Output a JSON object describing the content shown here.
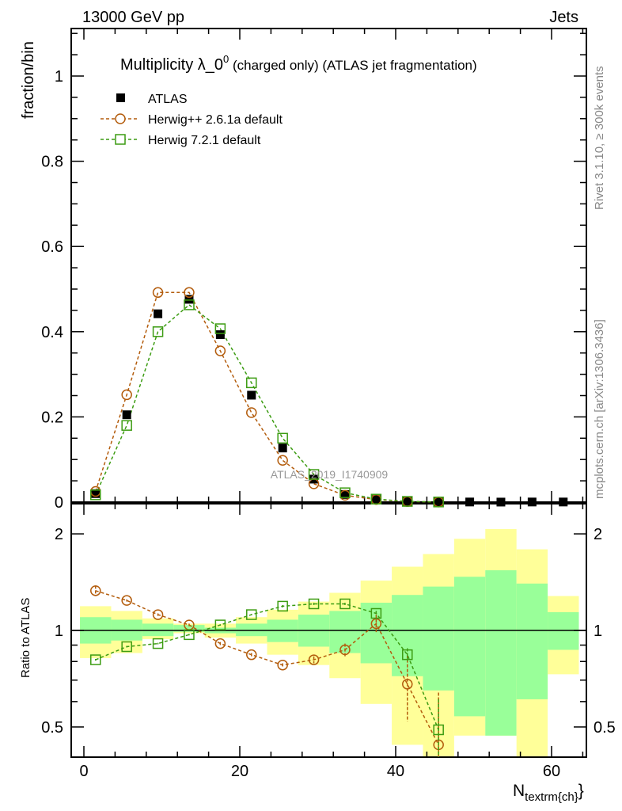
{
  "header": {
    "left": "13000 GeV pp",
    "right": "Jets"
  },
  "side": {
    "rivet": "Rivet 3.1.10, ≥ 300k events",
    "mcplots": "mcplots.cern.ch [arXiv:1306.3436]"
  },
  "watermark": "ATLAS_2019_I1740909",
  "colors": {
    "atlas": "#000000",
    "herwigpp": "#b35c0c",
    "herwig7": "#3c9c12",
    "band_outer": "#ffff99",
    "band_inner": "#99ff99"
  },
  "chart_data": [
    {
      "type": "scatter",
      "title_main": "Multiplicity λ_0",
      "title_sup": "0",
      "title_rest": " (charged only) (ATLAS jet fragmentation)",
      "xlabel": "N",
      "xlabel_sub": "textrm{ch}",
      "xlabel_close": "}",
      "ylabel": "fraction/bin",
      "xlim": [
        -1.7,
        64.5
      ],
      "ylim": [
        0,
        1.115
      ],
      "xticks": [
        "0",
        "20",
        "40",
        "60"
      ],
      "yticks": [
        "0",
        "0.2",
        "0.4",
        "0.6",
        "0.8",
        "1"
      ],
      "x": [
        1.5,
        5.5,
        9.5,
        13.5,
        17.5,
        21.5,
        25.5,
        29.5,
        33.5,
        37.5,
        41.5,
        45.5,
        49.5,
        53.5,
        57.5,
        61.5
      ],
      "legend": [
        "ATLAS",
        "Herwig++ 2.6.1a default",
        "Herwig 7.2.1 default"
      ],
      "series": [
        {
          "name": "ATLAS",
          "values": [
            0.02,
            0.205,
            0.442,
            0.476,
            0.393,
            0.251,
            0.127,
            0.054,
            0.018,
            0.006,
            0.002,
            0.0007,
            0.0003,
            0.0001,
            0.0003,
            0.0003
          ]
        },
        {
          "name": "Herwig++ 2.6.1a default",
          "values": [
            0.025,
            0.252,
            0.492,
            0.492,
            0.355,
            0.21,
            0.098,
            0.043,
            0.016,
            0.006,
            0.0014,
            0.0003
          ]
        },
        {
          "name": "Herwig 7.2.1 default",
          "values": [
            0.017,
            0.18,
            0.4,
            0.463,
            0.407,
            0.28,
            0.15,
            0.065,
            0.022,
            0.007,
            0.0017,
            0.0003
          ]
        }
      ]
    },
    {
      "type": "scatter",
      "ylabel": "Ratio to ATLAS",
      "yscale": "log",
      "ylim": [
        0.4,
        2.5
      ],
      "yticks": [
        "0.5",
        "1",
        "2"
      ],
      "ytick_values": [
        0.5,
        1,
        2
      ],
      "x": [
        1.5,
        5.5,
        9.5,
        13.5,
        17.5,
        21.5,
        25.5,
        29.5,
        33.5,
        37.5,
        41.5,
        45.5,
        49.5,
        53.5,
        57.5,
        61.5
      ],
      "band_outer": {
        "low": [
          0.82,
          0.85,
          0.94,
          0.98,
          0.95,
          0.91,
          0.84,
          0.78,
          0.71,
          0.59,
          0.44,
          0.3,
          0.47,
          0.47,
          0.3,
          0.73
        ],
        "high": [
          1.19,
          1.15,
          1.09,
          1.05,
          1.05,
          1.1,
          1.16,
          1.23,
          1.31,
          1.43,
          1.58,
          1.73,
          1.93,
          2.07,
          1.79,
          1.28
        ]
      },
      "band_inner": {
        "low": [
          0.91,
          0.93,
          0.96,
          0.99,
          0.98,
          0.96,
          0.92,
          0.89,
          0.85,
          0.79,
          0.72,
          0.65,
          0.54,
          0.47,
          0.61,
          0.87
        ],
        "high": [
          1.1,
          1.08,
          1.05,
          1.04,
          1.02,
          1.05,
          1.08,
          1.12,
          1.15,
          1.22,
          1.29,
          1.37,
          1.47,
          1.54,
          1.4,
          1.14
        ]
      },
      "series": [
        {
          "name": "Herwig++ 2.6.1a default",
          "values": [
            1.33,
            1.24,
            1.12,
            1.04,
            0.91,
            0.84,
            0.78,
            0.81,
            0.87,
            1.05,
            0.68,
            0.44
          ],
          "err": [
            0.05,
            0.01,
            0.01,
            0.01,
            0.01,
            0.01,
            0.01,
            0.02,
            0.04,
            0.07,
            0.16,
            0.2
          ]
        },
        {
          "name": "Herwig 7.2.1 default",
          "values": [
            0.81,
            0.89,
            0.91,
            0.97,
            1.04,
            1.12,
            1.19,
            1.21,
            1.21,
            1.13,
            0.84,
            0.49
          ],
          "err": [
            0.005,
            0.005,
            0.005,
            0.005,
            0.005,
            0.005,
            0.01,
            0.01,
            0.01,
            0.02,
            0.04,
            0.12
          ]
        }
      ]
    }
  ]
}
